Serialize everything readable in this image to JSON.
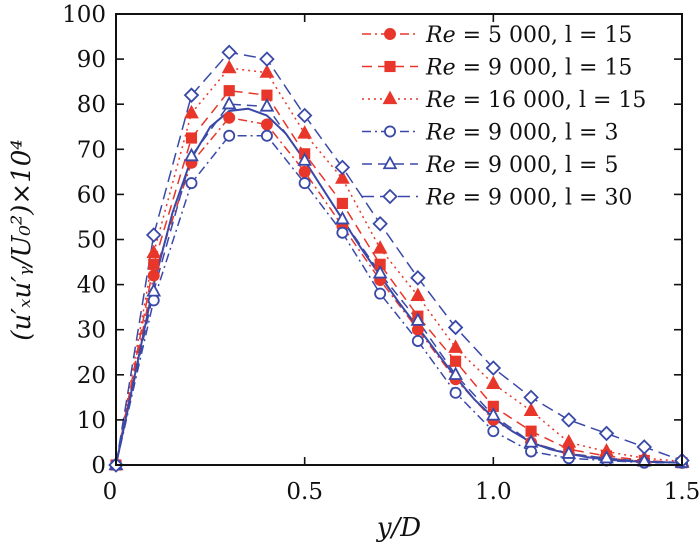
{
  "chart_data": {
    "type": "line",
    "xlabel": "y/D",
    "ylabel": "(u′ₓu′ᵧ/U₀²)×10⁴",
    "xlim": [
      0,
      1.5
    ],
    "ylim": [
      0,
      100
    ],
    "xticks": [
      0.5,
      1.0,
      1.5
    ],
    "xtick_labels": [
      "0.5",
      "1.0",
      "1.5"
    ],
    "yticks": [
      0,
      10,
      20,
      30,
      40,
      50,
      60,
      70,
      80,
      90,
      100
    ],
    "ytick_labels": [
      "0",
      "10",
      "20",
      "30",
      "40",
      "50",
      "60",
      "70",
      "80",
      "90",
      "100"
    ],
    "origin_label": "0",
    "grid": false,
    "legend_position": "top-right",
    "x": [
      0,
      0.1,
      0.2,
      0.3,
      0.4,
      0.5,
      0.6,
      0.7,
      0.8,
      0.9,
      1.0,
      1.1,
      1.2,
      1.3,
      1.4,
      1.5
    ],
    "series": [
      {
        "name_parts": [
          "Re",
          " = 5 000, l = 15"
        ],
        "color": "#e8362a",
        "marker": "circle",
        "marker_fill": "#e8362a",
        "line_style": "dashdot",
        "values": [
          0,
          42,
          67,
          77,
          75.5,
          65,
          53,
          41,
          30,
          19,
          10,
          5,
          2.5,
          1.5,
          0.8,
          0.5
        ]
      },
      {
        "name_parts": [
          "Re",
          " = 9 000, l = 15"
        ],
        "color": "#e8362a",
        "marker": "square",
        "marker_fill": "#e8362a",
        "line_style": "dashed",
        "values": [
          0,
          44.5,
          72.5,
          83,
          82,
          69,
          58,
          44.5,
          33,
          23,
          13,
          7.5,
          3.5,
          2,
          1,
          0.5
        ]
      },
      {
        "name_parts": [
          "Re",
          " = 16 000, l = 15"
        ],
        "color": "#e8362a",
        "marker": "triangle",
        "marker_fill": "#e8362a",
        "line_style": "dotted",
        "values": [
          0,
          47,
          78,
          88,
          87,
          73.5,
          63.5,
          48,
          37.5,
          26,
          18,
          12,
          5,
          3,
          1.5,
          0.8
        ]
      },
      {
        "name_parts": [
          "Re",
          " = 9 000, l = 3"
        ],
        "color": "#3a49a8",
        "marker": "circle",
        "marker_fill": "#ffffff",
        "line_style": "dashdot",
        "values": [
          0,
          36.5,
          62.5,
          73,
          73,
          62.5,
          51.5,
          38,
          27.5,
          16,
          7.5,
          3,
          1.5,
          1,
          0.5,
          0.5
        ]
      },
      {
        "name_parts": [
          "Re",
          " = 9 000, l = 5"
        ],
        "color": "#3a49a8",
        "marker": "triangle",
        "marker_fill": "#ffffff",
        "line_style": "dashed",
        "values": [
          0,
          38.5,
          68.5,
          80,
          79.5,
          67.5,
          54.5,
          42.5,
          32,
          20,
          11,
          5,
          2.5,
          1.5,
          0.8,
          0.5
        ]
      },
      {
        "name_parts": [
          "Re",
          " = 9 000, l = 30"
        ],
        "color": "#3a49a8",
        "marker": "diamond",
        "marker_fill": "#ffffff",
        "line_style": "longdash",
        "values": [
          0,
          51,
          82,
          91.5,
          90,
          77.5,
          66,
          53.5,
          41.5,
          30.5,
          21.5,
          15,
          10,
          7,
          4,
          1
        ]
      }
    ],
    "fit_curve": {
      "color": "#3a49a8",
      "x": [
        0,
        0.05,
        0.1,
        0.15,
        0.2,
        0.25,
        0.3,
        0.35,
        0.4,
        0.45,
        0.5,
        0.55,
        0.6,
        0.65,
        0.7,
        0.75,
        0.8,
        0.85,
        0.9,
        0.95,
        1.0,
        1.05,
        1.1,
        1.15,
        1.2,
        1.25,
        1.3,
        1.35,
        1.4,
        1.45,
        1.5
      ],
      "y": [
        0,
        20,
        40,
        56,
        68,
        75,
        78.5,
        79,
        77.5,
        73.5,
        67.5,
        61,
        54.5,
        48,
        42,
        36,
        30.5,
        25,
        19.5,
        14.5,
        10.5,
        7.5,
        5,
        3.5,
        2.5,
        1.7,
        1.2,
        0.9,
        0.7,
        0.6,
        0.5
      ]
    }
  }
}
